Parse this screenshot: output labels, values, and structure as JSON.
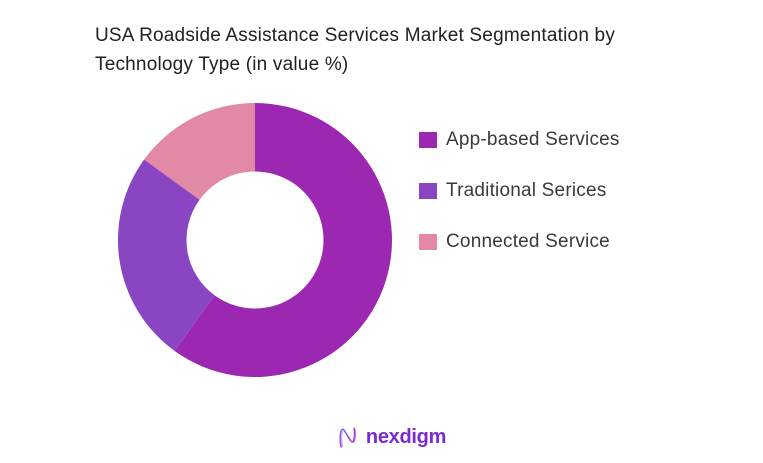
{
  "title": {
    "line1": "USA Roadside Assistance Services Market Segmentation by",
    "line2": "Technology Type (in value %)"
  },
  "chart_data": {
    "type": "pie",
    "subtype": "donut",
    "title": "USA Roadside Assistance Services Market Segmentation by Technology Type (in value %)",
    "unit": "value %",
    "labels": [
      "App-based Services",
      "Traditional Serices",
      "Connected Service"
    ],
    "values": [
      60,
      25,
      15
    ],
    "colors": [
      "#9c28b1",
      "#8a46c2",
      "#e189a5"
    ],
    "start_angle_deg": 0,
    "direction": "clockwise",
    "inner_radius_ratio": 0.5,
    "legend_position": "right",
    "data_labels_shown": false
  },
  "legend": {
    "items": [
      {
        "label": "App-based Services",
        "color": "#9c28b1"
      },
      {
        "label": "Traditional Serices",
        "color": "#8a46c2"
      },
      {
        "label": "Connected Service",
        "color": "#e189a5"
      }
    ]
  },
  "footer": {
    "brand": "nexdigm",
    "brand_color": "#7b2ad2",
    "logo_icon": "nexdigm-squiggle-n"
  }
}
